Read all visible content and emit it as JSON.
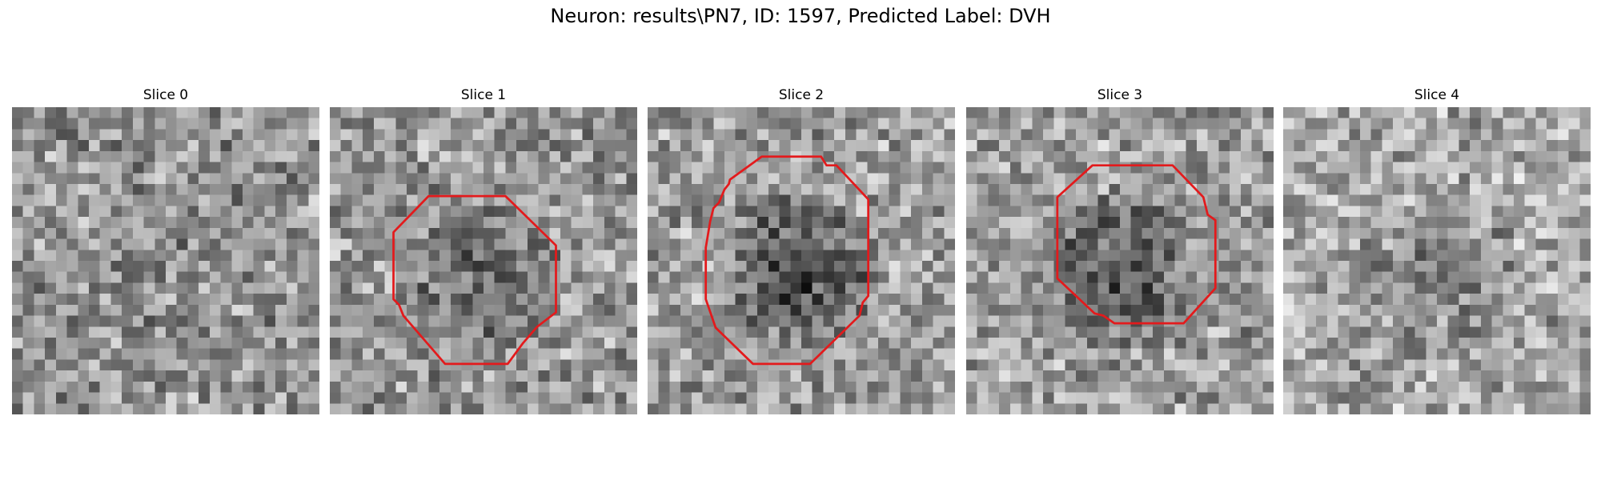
{
  "figure": {
    "title": "Neuron: results\\PN7, ID: 1597, Predicted Label: DVH"
  },
  "colors": {
    "contour": "#e31a1c",
    "background": "#ffffff"
  },
  "image_description_grid": 28,
  "slices": [
    {
      "title": "Slice 0",
      "has_contour": false,
      "mean_intensity": 0.58,
      "center_intensity": 0.55,
      "seed": 11
    },
    {
      "title": "Slice 1",
      "has_contour": true,
      "mean_intensity": 0.6,
      "center_intensity": 0.4,
      "seed": 23,
      "contour": [
        [
          10.5,
          8.1
        ],
        [
          16.0,
          8.1
        ],
        [
          20.6,
          12.6
        ],
        [
          20.6,
          18.7
        ],
        [
          18.9,
          20.0
        ],
        [
          17.6,
          21.5
        ],
        [
          16.2,
          23.4
        ],
        [
          10.5,
          23.4
        ],
        [
          6.7,
          19.0
        ],
        [
          6.3,
          18.0
        ],
        [
          5.8,
          17.5
        ],
        [
          5.8,
          11.4
        ],
        [
          9.0,
          8.1
        ]
      ]
    },
    {
      "title": "Slice 2",
      "has_contour": true,
      "mean_intensity": 0.62,
      "center_intensity": 0.3,
      "seed": 37,
      "contour": [
        [
          10.4,
          4.5
        ],
        [
          15.8,
          4.5
        ],
        [
          16.3,
          5.3
        ],
        [
          17.2,
          5.3
        ],
        [
          20.1,
          8.4
        ],
        [
          20.1,
          17.2
        ],
        [
          19.6,
          17.8
        ],
        [
          19.3,
          19.0
        ],
        [
          14.8,
          23.4
        ],
        [
          9.6,
          23.4
        ],
        [
          6.2,
          20.1
        ],
        [
          5.3,
          17.5
        ],
        [
          5.3,
          12.8
        ],
        [
          5.7,
          10.4
        ],
        [
          6.0,
          9.2
        ],
        [
          6.5,
          8.7
        ],
        [
          7.0,
          7.5
        ],
        [
          7.4,
          7.0
        ],
        [
          7.5,
          6.6
        ]
      ]
    },
    {
      "title": "Slice 3",
      "has_contour": true,
      "mean_intensity": 0.62,
      "center_intensity": 0.34,
      "seed": 53,
      "contour": [
        [
          11.5,
          5.3
        ],
        [
          18.8,
          5.3
        ],
        [
          21.6,
          8.2
        ],
        [
          22.0,
          9.8
        ],
        [
          22.7,
          10.3
        ],
        [
          22.7,
          16.5
        ],
        [
          19.8,
          19.7
        ],
        [
          13.5,
          19.7
        ],
        [
          12.5,
          19.0
        ],
        [
          11.7,
          18.8
        ],
        [
          8.3,
          15.6
        ],
        [
          8.3,
          8.2
        ],
        [
          11.5,
          5.3
        ]
      ]
    },
    {
      "title": "Slice 4",
      "has_contour": false,
      "mean_intensity": 0.66,
      "center_intensity": 0.5,
      "seed": 71
    }
  ]
}
